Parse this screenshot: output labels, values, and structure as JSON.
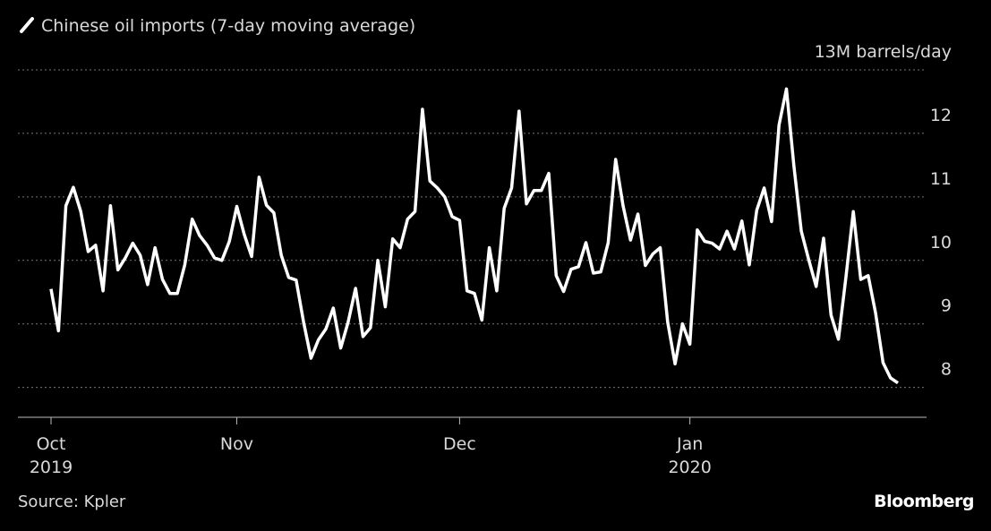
{
  "chart_data": {
    "type": "line",
    "title": "Chinese oil imports (7-day moving average)",
    "source": "Source: Kpler",
    "brand": "Bloomberg",
    "categories": [
      "Oct\n2019",
      null,
      null,
      null,
      null,
      null,
      null,
      null,
      null,
      null,
      null,
      null,
      null,
      null,
      null,
      null,
      null,
      null,
      null,
      null,
      null,
      null,
      null,
      null,
      null,
      "Nov",
      null,
      null,
      null,
      null,
      null,
      null,
      null,
      null,
      null,
      null,
      null,
      null,
      null,
      null,
      null,
      null,
      null,
      null,
      null,
      null,
      null,
      null,
      null,
      null,
      null,
      null,
      null,
      null,
      null,
      "Dec",
      null,
      null,
      null,
      null,
      null,
      null,
      null,
      null,
      null,
      null,
      null,
      null,
      null,
      null,
      null,
      null,
      null,
      null,
      null,
      null,
      null,
      null,
      null,
      null,
      null,
      null,
      null,
      null,
      null,
      null,
      "Jan\n2020",
      null,
      null,
      null,
      null,
      null,
      null,
      null,
      null,
      null,
      null,
      null,
      null,
      null,
      null,
      null,
      null,
      null,
      null,
      null,
      null,
      null,
      null,
      null,
      null,
      null,
      null,
      null,
      null
    ],
    "series": [
      {
        "name": "Chinese oil imports",
        "color": "#ffffff",
        "values": [
          9.55,
          8.89,
          10.86,
          11.15,
          10.77,
          10.14,
          10.24,
          9.52,
          10.86,
          9.85,
          10.04,
          10.27,
          10.08,
          9.62,
          10.2,
          9.7,
          9.48,
          9.48,
          9.93,
          10.65,
          10.39,
          10.24,
          10.04,
          10.0,
          10.3,
          10.85,
          10.41,
          10.06,
          11.31,
          10.87,
          10.75,
          10.08,
          9.73,
          9.69,
          9.03,
          8.46,
          8.75,
          8.92,
          9.25,
          8.62,
          9.03,
          9.56,
          8.8,
          8.94,
          10.0,
          9.27,
          10.34,
          10.2,
          10.65,
          10.77,
          12.38,
          11.25,
          11.14,
          11.0,
          10.69,
          10.63,
          9.52,
          9.48,
          9.06,
          10.2,
          9.52,
          10.82,
          11.14,
          12.35,
          10.89,
          11.1,
          11.1,
          11.37,
          9.76,
          9.51,
          9.86,
          9.9,
          10.28,
          9.8,
          9.82,
          10.28,
          11.59,
          10.86,
          10.32,
          10.73,
          9.92,
          10.1,
          10.2,
          9.03,
          8.37,
          9.0,
          8.68,
          10.48,
          10.3,
          10.27,
          10.18,
          10.46,
          10.18,
          10.62,
          9.93,
          10.79,
          11.14,
          10.61,
          12.13,
          12.7,
          11.49,
          10.46,
          10.01,
          9.59,
          10.35,
          9.14,
          8.76,
          9.73,
          10.77,
          9.7,
          9.76,
          9.17,
          8.39,
          8.15,
          8.07
        ]
      }
    ],
    "ylim": [
      7.53,
      13
    ],
    "yticks": [
      8,
      9,
      10,
      11,
      12,
      {
        "value": 13,
        "label": "13M barrels/day"
      }
    ],
    "grid": true
  }
}
